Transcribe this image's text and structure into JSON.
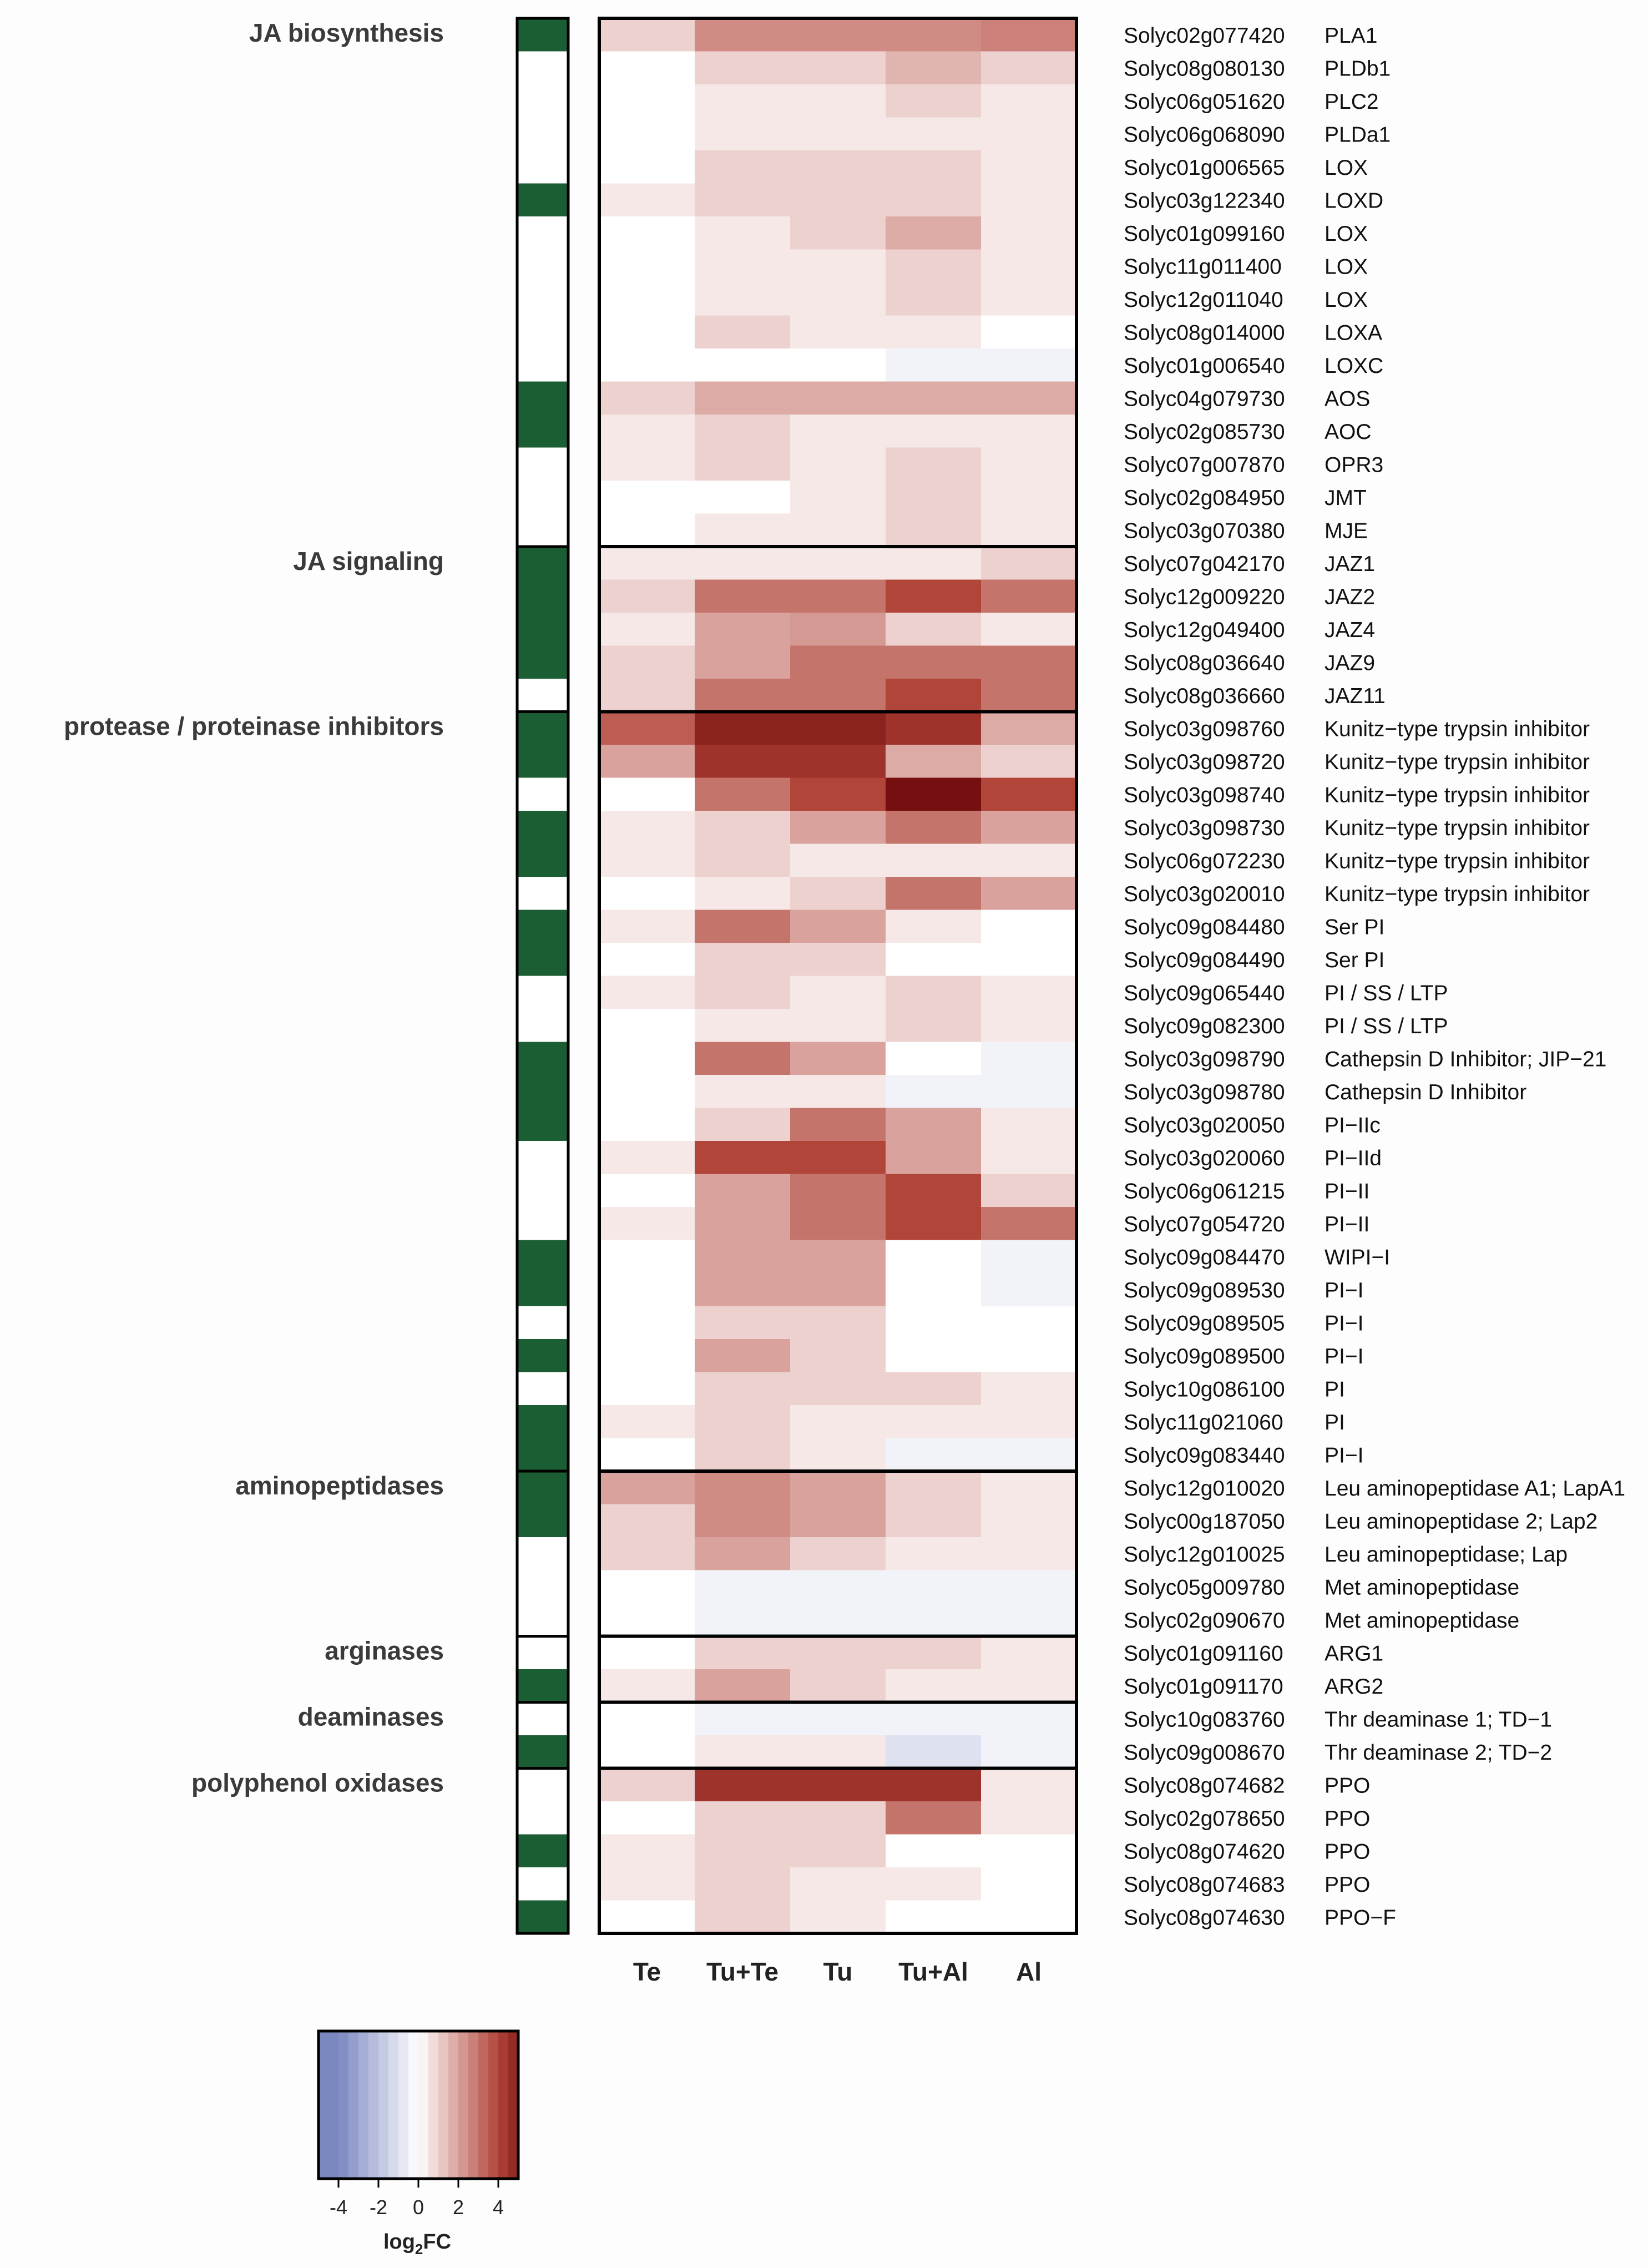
{
  "chart_data": {
    "type": "heatmap",
    "title": "",
    "columns": [
      "Te",
      "Tu+Te",
      "Tu",
      "Tu+Al",
      "Al"
    ],
    "legend": {
      "label_main": "log",
      "label_sub": "2",
      "label_tail": "FC",
      "ticks": [
        "-4",
        "-2",
        "0",
        "2",
        "4"
      ],
      "tick_values": [
        -4,
        -2,
        0,
        2,
        4
      ],
      "range": [
        -5,
        5
      ],
      "color_low": "#7b88c0",
      "color_mid": "#ffffff",
      "color_high": "#b2453a"
    },
    "side_marker_color": "#1c5e33",
    "sections": [
      {
        "name": "JA biosynthesis",
        "genes": [
          {
            "id": "Solyc02g077420",
            "name": "PLA1",
            "marked": true,
            "values": [
              1.0,
              2.5,
              2.5,
              2.5,
              2.7
            ]
          },
          {
            "id": "Solyc08g080130",
            "name": "PLDb1",
            "marked": false,
            "values": [
              0,
              1.0,
              1.0,
              1.6,
              1.0
            ]
          },
          {
            "id": "Solyc06g051620",
            "name": "PLC2",
            "marked": false,
            "values": [
              0,
              0.5,
              0.5,
              1.0,
              0.5
            ]
          },
          {
            "id": "Solyc06g068090",
            "name": "PLDa1",
            "marked": false,
            "values": [
              0,
              0.5,
              0.5,
              0.5,
              0.5
            ]
          },
          {
            "id": "Solyc01g006565",
            "name": "LOX",
            "marked": false,
            "values": [
              0,
              1.0,
              1.0,
              1.0,
              0.5
            ]
          },
          {
            "id": "Solyc03g122340",
            "name": "LOXD",
            "marked": true,
            "values": [
              0.5,
              1.0,
              1.0,
              1.0,
              0.5
            ]
          },
          {
            "id": "Solyc01g099160",
            "name": "LOX",
            "marked": false,
            "values": [
              0,
              0.5,
              1.0,
              1.8,
              0.5
            ]
          },
          {
            "id": "Solyc11g011400",
            "name": "LOX",
            "marked": false,
            "values": [
              0,
              0.5,
              0.5,
              1.0,
              0.5
            ]
          },
          {
            "id": "Solyc12g011040",
            "name": "LOX",
            "marked": false,
            "values": [
              0,
              0.5,
              0.5,
              1.0,
              0.5
            ]
          },
          {
            "id": "Solyc08g014000",
            "name": "LOXA",
            "marked": false,
            "values": [
              0,
              1.0,
              0.5,
              0.5,
              0
            ]
          },
          {
            "id": "Solyc01g006540",
            "name": "LOXC",
            "marked": false,
            "values": [
              0,
              0,
              0,
              -0.4,
              -0.4
            ]
          },
          {
            "id": "Solyc04g079730",
            "name": "AOS",
            "marked": true,
            "values": [
              1.0,
              1.8,
              1.8,
              1.8,
              1.8
            ]
          },
          {
            "id": "Solyc02g085730",
            "name": "AOC",
            "marked": true,
            "values": [
              0.5,
              1.0,
              0.5,
              0.5,
              0.5
            ]
          },
          {
            "id": "Solyc07g007870",
            "name": "OPR3",
            "marked": false,
            "values": [
              0.5,
              1.0,
              0.5,
              1.0,
              0.5
            ]
          },
          {
            "id": "Solyc02g084950",
            "name": "JMT",
            "marked": false,
            "values": [
              0,
              0,
              0.5,
              1.0,
              0.5
            ]
          },
          {
            "id": "Solyc03g070380",
            "name": "MJE",
            "marked": false,
            "values": [
              0,
              0.5,
              0.5,
              1.0,
              0.5
            ]
          }
        ]
      },
      {
        "name": "JA signaling",
        "genes": [
          {
            "id": "Solyc07g042170",
            "name": "JAZ1",
            "marked": true,
            "values": [
              0.5,
              0.5,
              0.5,
              0.5,
              1.0
            ]
          },
          {
            "id": "Solyc12g009220",
            "name": "JAZ2",
            "marked": true,
            "values": [
              1.0,
              3.0,
              3.0,
              4.0,
              3.0
            ]
          },
          {
            "id": "Solyc12g049400",
            "name": "JAZ4",
            "marked": true,
            "values": [
              0.5,
              2.0,
              2.2,
              1.0,
              0.5
            ]
          },
          {
            "id": "Solyc08g036640",
            "name": "JAZ9",
            "marked": true,
            "values": [
              1.0,
              2.0,
              3.0,
              3.0,
              3.0
            ]
          },
          {
            "id": "Solyc08g036660",
            "name": "JAZ11",
            "marked": false,
            "values": [
              1.0,
              3.0,
              3.0,
              4.0,
              3.0
            ]
          }
        ]
      },
      {
        "name": "protease / proteinase inhibitors",
        "genes": [
          {
            "id": "Solyc03g098760",
            "name": "Kunitz−type trypsin inhibitor",
            "marked": true,
            "values": [
              3.5,
              5.0,
              5.0,
              4.5,
              1.8
            ]
          },
          {
            "id": "Solyc03g098720",
            "name": "Kunitz−type trypsin inhibitor",
            "marked": true,
            "values": [
              2.0,
              4.5,
              4.5,
              1.8,
              1.0
            ]
          },
          {
            "id": "Solyc03g098740",
            "name": "Kunitz−type trypsin inhibitor",
            "marked": false,
            "values": [
              0,
              3.0,
              4.0,
              5.5,
              4.0
            ]
          },
          {
            "id": "Solyc03g098730",
            "name": "Kunitz−type trypsin inhibitor",
            "marked": true,
            "values": [
              0.5,
              1.0,
              2.0,
              3.0,
              2.0
            ]
          },
          {
            "id": "Solyc06g072230",
            "name": "Kunitz−type trypsin inhibitor",
            "marked": true,
            "values": [
              0.5,
              1.0,
              0.5,
              0.5,
              0.5
            ]
          },
          {
            "id": "Solyc03g020010",
            "name": "Kunitz−type trypsin inhibitor",
            "marked": false,
            "values": [
              0,
              0.5,
              1.0,
              3.0,
              2.0
            ]
          },
          {
            "id": "Solyc09g084480",
            "name": "Ser PI",
            "marked": true,
            "values": [
              0.5,
              3.0,
              2.0,
              0.5,
              0
            ]
          },
          {
            "id": "Solyc09g084490",
            "name": "Ser PI",
            "marked": true,
            "values": [
              0,
              1.0,
              1.0,
              0,
              0
            ]
          },
          {
            "id": "Solyc09g065440",
            "name": "PI / SS / LTP",
            "marked": false,
            "values": [
              0.5,
              1.0,
              0.5,
              1.0,
              0.5
            ]
          },
          {
            "id": "Solyc09g082300",
            "name": "PI / SS / LTP",
            "marked": false,
            "values": [
              0,
              0.5,
              0.5,
              1.0,
              0.5
            ]
          },
          {
            "id": "Solyc03g098790",
            "name": "Cathepsin D Inhibitor; JIP−21",
            "marked": true,
            "values": [
              0,
              3.0,
              2.0,
              0,
              -0.4
            ]
          },
          {
            "id": "Solyc03g098780",
            "name": "Cathepsin D Inhibitor",
            "marked": true,
            "values": [
              0,
              0.5,
              0.5,
              -0.4,
              -0.4
            ]
          },
          {
            "id": "Solyc03g020050",
            "name": "PI−IIc",
            "marked": true,
            "values": [
              0,
              1.0,
              3.0,
              2.0,
              0.5
            ]
          },
          {
            "id": "Solyc03g020060",
            "name": "PI−IId",
            "marked": false,
            "values": [
              0.5,
              4.0,
              4.0,
              2.0,
              0.5
            ]
          },
          {
            "id": "Solyc06g061215",
            "name": "PI−II",
            "marked": false,
            "values": [
              0,
              2.0,
              3.0,
              4.0,
              1.0
            ]
          },
          {
            "id": "Solyc07g054720",
            "name": "PI−II",
            "marked": false,
            "values": [
              0.5,
              2.0,
              3.0,
              4.0,
              3.0
            ]
          },
          {
            "id": "Solyc09g084470",
            "name": "WIPI−I",
            "marked": true,
            "values": [
              0,
              2.0,
              2.0,
              0,
              -0.4
            ]
          },
          {
            "id": "Solyc09g089530",
            "name": "PI−I",
            "marked": true,
            "values": [
              0,
              2.0,
              2.0,
              0,
              -0.4
            ]
          },
          {
            "id": "Solyc09g089505",
            "name": "PI−I",
            "marked": false,
            "values": [
              0,
              1.0,
              1.0,
              0,
              0
            ]
          },
          {
            "id": "Solyc09g089500",
            "name": "PI−I",
            "marked": true,
            "values": [
              0,
              2.0,
              1.0,
              0,
              0
            ]
          },
          {
            "id": "Solyc10g086100",
            "name": "PI",
            "marked": false,
            "values": [
              0,
              1.0,
              1.0,
              1.0,
              0.5
            ]
          },
          {
            "id": "Solyc11g021060",
            "name": "PI",
            "marked": true,
            "values": [
              0.5,
              1.0,
              0.5,
              0.5,
              0.5
            ]
          },
          {
            "id": "Solyc09g083440",
            "name": "PI−I",
            "marked": true,
            "values": [
              0,
              1.0,
              0.5,
              -0.4,
              -0.4
            ]
          }
        ]
      },
      {
        "name": "aminopeptidases",
        "genes": [
          {
            "id": "Solyc12g010020",
            "name": "Leu aminopeptidase A1; LapA1",
            "marked": true,
            "values": [
              2.0,
              2.5,
              2.0,
              1.0,
              0.5
            ]
          },
          {
            "id": "Solyc00g187050",
            "name": "Leu aminopeptidase 2; Lap2",
            "marked": true,
            "values": [
              1.0,
              2.5,
              2.0,
              1.0,
              0.5
            ]
          },
          {
            "id": "Solyc12g010025",
            "name": "Leu aminopeptidase; Lap",
            "marked": false,
            "values": [
              1.0,
              2.0,
              1.0,
              0.5,
              0.5
            ]
          },
          {
            "id": "Solyc05g009780",
            "name": "Met aminopeptidase",
            "marked": false,
            "values": [
              0,
              -0.4,
              -0.4,
              -0.4,
              -0.4
            ]
          },
          {
            "id": "Solyc02g090670",
            "name": "Met aminopeptidase",
            "marked": false,
            "values": [
              0,
              -0.4,
              -0.4,
              -0.4,
              -0.4
            ]
          }
        ]
      },
      {
        "name": "arginases",
        "genes": [
          {
            "id": "Solyc01g091160",
            "name": "ARG1",
            "marked": false,
            "values": [
              0,
              1.0,
              1.0,
              1.0,
              0.5
            ]
          },
          {
            "id": "Solyc01g091170",
            "name": "ARG2",
            "marked": true,
            "values": [
              0.5,
              2.0,
              1.0,
              0.5,
              0.5
            ]
          }
        ]
      },
      {
        "name": "deaminases",
        "genes": [
          {
            "id": "Solyc10g083760",
            "name": "Thr deaminase 1; TD−1",
            "marked": false,
            "values": [
              0,
              -0.4,
              -0.4,
              -0.4,
              -0.4
            ]
          },
          {
            "id": "Solyc09g008670",
            "name": "Thr deaminase 2; TD−2",
            "marked": true,
            "values": [
              0,
              0.5,
              0.5,
              -1.0,
              -0.4
            ]
          }
        ]
      },
      {
        "name": "polyphenol oxidases",
        "genes": [
          {
            "id": "Solyc08g074682",
            "name": "PPO",
            "marked": false,
            "values": [
              1.0,
              4.5,
              4.5,
              4.5,
              0.5
            ]
          },
          {
            "id": "Solyc02g078650",
            "name": "PPO",
            "marked": false,
            "values": [
              0,
              1.0,
              1.0,
              3.0,
              0.5
            ]
          },
          {
            "id": "Solyc08g074620",
            "name": "PPO",
            "marked": true,
            "values": [
              0.5,
              1.0,
              1.0,
              0,
              0
            ]
          },
          {
            "id": "Solyc08g074683",
            "name": "PPO",
            "marked": false,
            "values": [
              0.5,
              1.0,
              0.5,
              0.5,
              0
            ]
          },
          {
            "id": "Solyc08g074630",
            "name": "PPO−F",
            "marked": true,
            "values": [
              0,
              1.0,
              0.5,
              0,
              0
            ]
          }
        ]
      }
    ]
  }
}
